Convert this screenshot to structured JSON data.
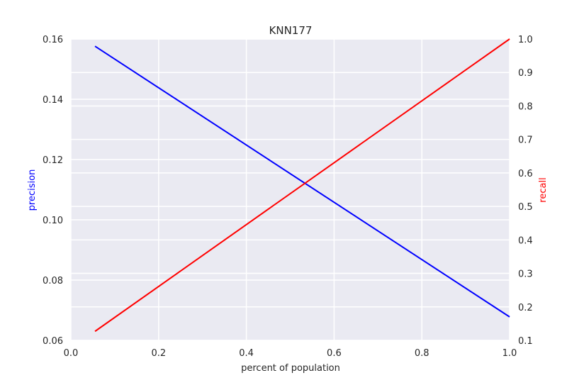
{
  "chart_data": {
    "type": "line",
    "title": "KNN177",
    "xlabel": "percent of population",
    "ylabel_left": "precision",
    "ylabel_right": "recall",
    "xlim": [
      0.0,
      1.0
    ],
    "ylim_left": [
      0.06,
      0.16
    ],
    "ylim_right": [
      0.1,
      1.0
    ],
    "x_ticks": [
      "0.0",
      "0.2",
      "0.4",
      "0.6",
      "0.8",
      "1.0"
    ],
    "y_left_ticks": [
      "0.06",
      "0.08",
      "0.10",
      "0.12",
      "0.14",
      "0.16"
    ],
    "y_right_ticks": [
      "0.1",
      "0.2",
      "0.3",
      "0.4",
      "0.5",
      "0.6",
      "0.7",
      "0.8",
      "0.9",
      "1.0"
    ],
    "grid": true,
    "series": [
      {
        "name": "precision",
        "axis": "left",
        "color": "#0000ff",
        "x": [
          0.055,
          1.0
        ],
        "y": [
          0.1576,
          0.0678
        ]
      },
      {
        "name": "recall",
        "axis": "right",
        "color": "#ff0000",
        "x": [
          0.055,
          1.0
        ],
        "y": [
          0.127,
          1.0
        ]
      }
    ],
    "colors": {
      "plot_background": "#eaeaf2",
      "grid": "#ffffff",
      "text": "#262626",
      "precision_label": "#0000ff",
      "recall_label": "#ff0000"
    }
  }
}
